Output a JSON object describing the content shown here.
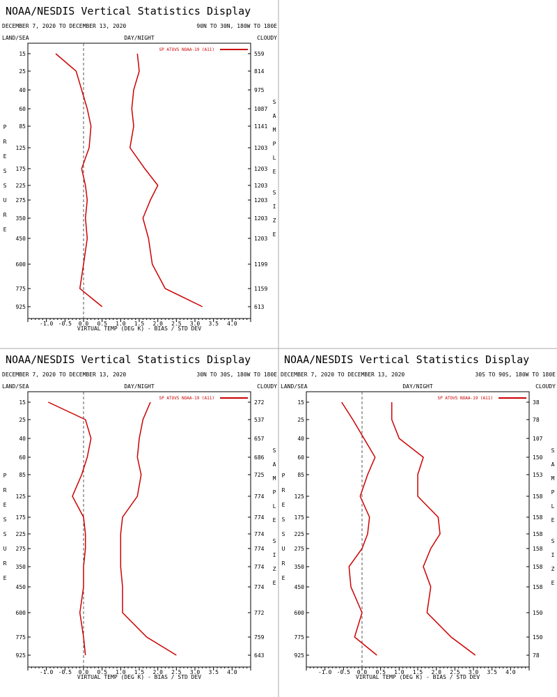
{
  "chart_data": [
    {
      "type": "line",
      "title": "NOAA/NESDIS Vertical Statistics Display",
      "date_range": "DECEMBER 7, 2020 TO DECEMBER 13, 2020",
      "region": "90N TO 30N, 180W TO 180E",
      "top_left_label": "LAND/SEA",
      "top_center_label": "DAY/NIGHT",
      "top_right_label": "CLOUDY",
      "left_axis_label": "PRESSURE",
      "right_axis_label": "SAMPLE SIZE",
      "xlabel": "VIRTUAL TEMP (DEG K) - BIAS / STD DEV",
      "xlim": [
        -1.5,
        4.5
      ],
      "x_ticks": [
        "-1.0",
        "-0.5",
        "0.0",
        "0.5",
        "1.0",
        "1.5",
        "2.0",
        "2.5",
        "3.0",
        "3.5",
        "4.0"
      ],
      "pressure_levels": [
        "15",
        "25",
        "40",
        "60",
        "85",
        "125",
        "175",
        "225",
        "275",
        "350",
        "450",
        "600",
        "775",
        "925"
      ],
      "sample_size": [
        "559",
        "814",
        "975",
        "1087",
        "1141",
        "1203",
        "1203",
        "1203",
        "1203",
        "1203",
        "1203",
        "1199",
        "1159",
        "613"
      ],
      "legend": "SP ATOVS NOAA-19 (A11)",
      "color": "#cc0000",
      "series": [
        {
          "values": [
            -0.75,
            -0.2,
            -0.05,
            0.1,
            0.2,
            0.15,
            -0.05,
            0.05,
            0.1,
            0.05,
            0.1,
            0.0,
            -0.1,
            0.5
          ]
        },
        {
          "values": [
            1.45,
            1.5,
            1.35,
            1.3,
            1.35,
            1.25,
            1.65,
            2.0,
            1.8,
            1.6,
            1.75,
            1.85,
            2.2,
            3.2
          ]
        }
      ]
    },
    {
      "type": "line",
      "title": "NOAA/NESDIS Vertical Statistics Display",
      "date_range": "DECEMBER 7, 2020 TO DECEMBER 13, 2020",
      "region": "30N TO 30S, 180W TO 180E",
      "top_left_label": "LAND/SEA",
      "top_center_label": "DAY/NIGHT",
      "top_right_label": "CLOUDY",
      "left_axis_label": "PRESSURE",
      "right_axis_label": "SAMPLE SIZE",
      "xlabel": "VIRTUAL TEMP (DEG K) - BIAS / STD DEV",
      "xlim": [
        -1.5,
        4.5
      ],
      "x_ticks": [
        "-1.0",
        "-0.5",
        "0.0",
        "0.5",
        "1.0",
        "1.5",
        "2.0",
        "2.5",
        "3.0",
        "3.5",
        "4.0"
      ],
      "pressure_levels": [
        "15",
        "25",
        "40",
        "60",
        "85",
        "125",
        "175",
        "225",
        "275",
        "350",
        "450",
        "600",
        "775",
        "925"
      ],
      "sample_size": [
        "272",
        "537",
        "657",
        "686",
        "725",
        "774",
        "774",
        "774",
        "774",
        "774",
        "774",
        "772",
        "759",
        "643"
      ],
      "legend": "SP ATOVS NOAA-19 (A11)",
      "color": "#cc0000",
      "series": [
        {
          "values": [
            -0.95,
            0.05,
            0.2,
            0.1,
            -0.05,
            -0.3,
            0.0,
            0.05,
            0.05,
            0.0,
            0.0,
            -0.1,
            0.0,
            0.05
          ]
        },
        {
          "values": [
            1.8,
            1.6,
            1.5,
            1.45,
            1.55,
            1.45,
            1.05,
            1.0,
            1.0,
            1.0,
            1.05,
            1.05,
            1.7,
            2.5
          ]
        }
      ]
    },
    {
      "type": "line",
      "title": "NOAA/NESDIS Vertical Statistics Display",
      "date_range": "DECEMBER 7, 2020 TO DECEMBER 13, 2020",
      "region": "30S TO 90S, 180W TO 180E",
      "top_left_label": "LAND/SEA",
      "top_center_label": "DAY/NIGHT",
      "top_right_label": "CLOUDY",
      "left_axis_label": "PRESSURE",
      "right_axis_label": "SAMPLE SIZE",
      "xlabel": "VIRTUAL TEMP (DEG K) - BIAS / STD DEV",
      "xlim": [
        -1.5,
        4.5
      ],
      "x_ticks": [
        "-1.0",
        "-0.5",
        "0.0",
        "0.5",
        "1.0",
        "1.5",
        "2.0",
        "2.5",
        "3.0",
        "3.5",
        "4.0"
      ],
      "pressure_levels": [
        "15",
        "25",
        "40",
        "60",
        "85",
        "125",
        "175",
        "225",
        "275",
        "350",
        "450",
        "600",
        "775",
        "925"
      ],
      "sample_size": [
        "38",
        "78",
        "107",
        "150",
        "153",
        "158",
        "158",
        "158",
        "158",
        "158",
        "158",
        "150",
        "150",
        "78"
      ],
      "legend": "SP ATOVS NOAA-19 (A11)",
      "color": "#cc0000",
      "series": [
        {
          "values": [
            -0.55,
            -0.25,
            0.05,
            0.35,
            0.15,
            -0.05,
            0.2,
            0.15,
            0.0,
            -0.35,
            -0.3,
            0.0,
            -0.2,
            0.4
          ]
        },
        {
          "values": [
            0.8,
            0.8,
            1.0,
            1.65,
            1.5,
            1.5,
            2.05,
            2.1,
            1.85,
            1.65,
            1.85,
            1.75,
            2.4,
            3.05
          ]
        }
      ]
    }
  ]
}
